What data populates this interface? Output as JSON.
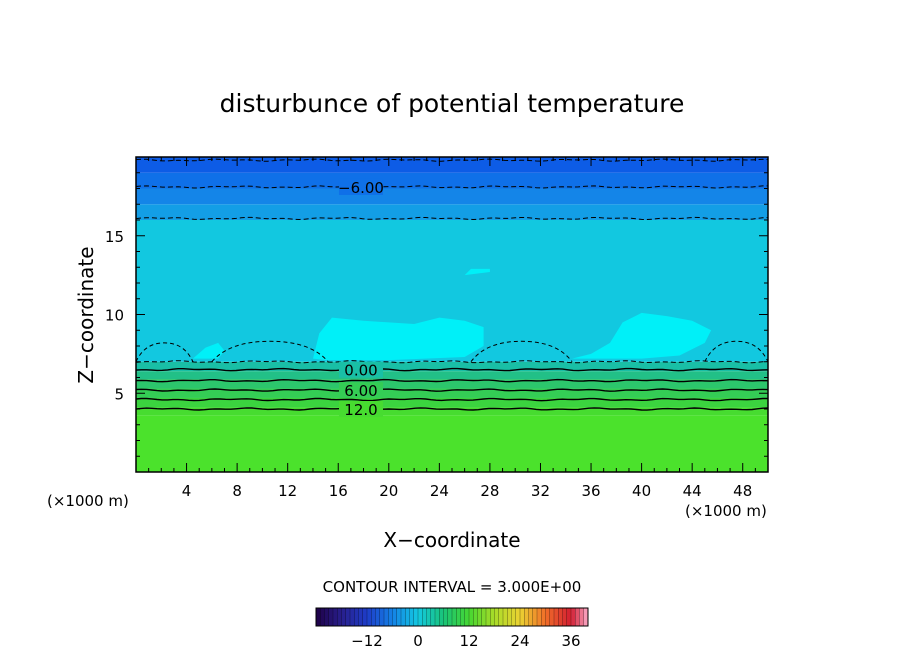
{
  "chart_data": {
    "type": "heatmap",
    "title": "disturbunce of potential temperature",
    "xlabel": "X−coordinate",
    "ylabel": "Z−coordinate",
    "x_unit_left": "(×1000 m)",
    "x_unit_right": "(×1000 m)",
    "xlim": [
      0,
      50
    ],
    "ylim": [
      0,
      20
    ],
    "x_ticks": [
      4,
      8,
      12,
      16,
      20,
      24,
      28,
      32,
      36,
      40,
      44,
      48
    ],
    "y_ticks": [
      5,
      10,
      15
    ],
    "layers": [
      {
        "z0": 0,
        "z1": 3.6,
        "value": 15,
        "color": "#4be22c"
      },
      {
        "z0": 3.6,
        "z1": 4.1,
        "value": 14,
        "color": "#47dc30"
      },
      {
        "z0": 4.1,
        "z1": 4.7,
        "value": 12,
        "color": "#3bd43f"
      },
      {
        "z0": 4.7,
        "z1": 5.3,
        "value": 9,
        "color": "#34cd55"
      },
      {
        "z0": 5.3,
        "z1": 5.9,
        "value": 6,
        "color": "#2cc66c"
      },
      {
        "z0": 5.9,
        "z1": 6.4,
        "value": 3,
        "color": "#22c087"
      },
      {
        "z0": 6.4,
        "z1": 7.0,
        "value": 0,
        "color": "#19bfa6"
      },
      {
        "z0": 7.0,
        "z1": 16.0,
        "value": -2,
        "color": "#12c8e0"
      },
      {
        "z0": 16.0,
        "z1": 17.0,
        "value": -5,
        "color": "#139ee6"
      },
      {
        "z0": 17.0,
        "z1": 18.0,
        "value": -6,
        "color": "#1485e8"
      },
      {
        "z0": 18.0,
        "z1": 19.0,
        "value": -8,
        "color": "#0f70e8"
      },
      {
        "z0": 19.0,
        "z1": 20.0,
        "value": -10,
        "color": "#0d5ce6"
      }
    ],
    "patch_color": "#00f0f8",
    "patches": [
      [
        [
          14,
          7.2
        ],
        [
          14.5,
          8.8
        ],
        [
          15.5,
          9.8
        ],
        [
          18,
          9.6
        ],
        [
          22,
          9.4
        ],
        [
          24,
          9.8
        ],
        [
          26,
          9.6
        ],
        [
          27.5,
          9.2
        ],
        [
          27.5,
          8.0
        ],
        [
          26,
          7.3
        ],
        [
          20,
          7.1
        ],
        [
          15,
          7.1
        ]
      ],
      [
        [
          34.5,
          7.2
        ],
        [
          36,
          7.5
        ],
        [
          37.5,
          8.2
        ],
        [
          38.5,
          9.5
        ],
        [
          40,
          10.1
        ],
        [
          42,
          9.9
        ],
        [
          44,
          9.6
        ],
        [
          45.5,
          9.0
        ],
        [
          45,
          8.2
        ],
        [
          43,
          7.4
        ],
        [
          40,
          7.2
        ]
      ],
      [
        [
          4.5,
          7.2
        ],
        [
          5.5,
          7.9
        ],
        [
          6.5,
          8.2
        ],
        [
          7,
          7.7
        ],
        [
          6.5,
          7.2
        ]
      ],
      [
        [
          26,
          12.5
        ],
        [
          28,
          12.7
        ],
        [
          28,
          12.9
        ],
        [
          26.5,
          12.9
        ]
      ]
    ],
    "contours": [
      {
        "label": "12.0",
        "label_x": 17.8,
        "z": 4.0,
        "style": "solid"
      },
      {
        "label": "",
        "z": 4.6,
        "style": "solid"
      },
      {
        "label": "6.00",
        "label_x": 17.8,
        "z": 5.2,
        "style": "solid"
      },
      {
        "label": "",
        "z": 5.8,
        "style": "solid"
      },
      {
        "label": "0.00",
        "label_x": 17.8,
        "z": 6.5,
        "style": "solid"
      },
      {
        "label": "",
        "z": 7.0,
        "style": "dashed"
      },
      {
        "label": "",
        "z": 16.1,
        "style": "dashed"
      },
      {
        "label": "−6.00",
        "label_x": 17.8,
        "z": 18.1,
        "style": "dashed"
      },
      {
        "label": "",
        "z": 19.8,
        "style": "dashed"
      }
    ],
    "dashed_lobes": [
      [
        0,
        4.5,
        8.2
      ],
      [
        6,
        15.2,
        8.3
      ],
      [
        26.5,
        34.5,
        8.3
      ],
      [
        45,
        50,
        8.3
      ]
    ],
    "contour_interval_text": "CONTOUR INTERVAL = 3.000E+00",
    "colorbar": {
      "min": -24,
      "max": 40,
      "tick_values": [
        -12,
        0,
        12,
        24,
        36
      ],
      "tick_labels": [
        "−12",
        "0",
        "12",
        "24",
        "36"
      ]
    }
  }
}
